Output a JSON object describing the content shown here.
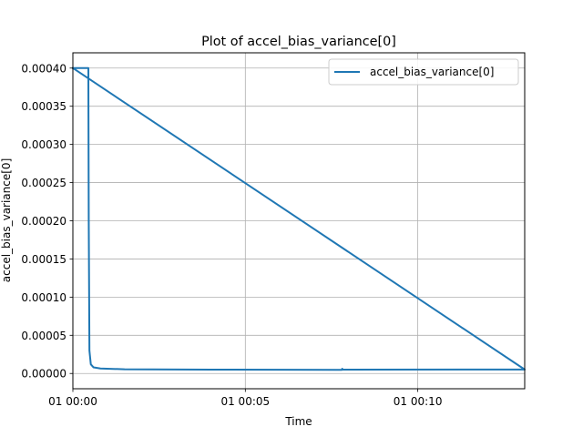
{
  "chart_data": {
    "type": "line",
    "title": "Plot of accel_bias_variance[0]",
    "xlabel": "Time",
    "ylabel": "accel_bias_variance[0]",
    "x_unit": "minutes",
    "xlim": [
      0,
      13.1
    ],
    "ylim": [
      -2e-05,
      0.00042
    ],
    "x_ticks": [
      {
        "value": 0,
        "label": "01 00:00"
      },
      {
        "value": 5,
        "label": "01 00:05"
      },
      {
        "value": 10,
        "label": "01 00:10"
      }
    ],
    "y_ticks": [
      {
        "value": 0.0,
        "label": "0.00000"
      },
      {
        "value": 5e-05,
        "label": "0.00005"
      },
      {
        "value": 0.0001,
        "label": "0.00010"
      },
      {
        "value": 0.00015,
        "label": "0.00015"
      },
      {
        "value": 0.0002,
        "label": "0.00020"
      },
      {
        "value": 0.00025,
        "label": "0.00025"
      },
      {
        "value": 0.0003,
        "label": "0.00030"
      },
      {
        "value": 0.00035,
        "label": "0.00035"
      },
      {
        "value": 0.0004,
        "label": "0.00040"
      }
    ],
    "grid": true,
    "legend_position": "top-right",
    "series": [
      {
        "name": "accel_bias_variance[0]",
        "color": "#1f77b4",
        "points": [
          [
            0.0,
            0.0004
          ],
          [
            0.45,
            0.0004
          ],
          [
            0.45,
            0.00038
          ],
          [
            0.46,
            0.0002
          ],
          [
            0.48,
            3e-05
          ],
          [
            0.52,
            1.2e-05
          ],
          [
            0.6,
            8e-06
          ],
          [
            0.8,
            6.5e-06
          ],
          [
            1.5,
            5.5e-06
          ],
          [
            4.0,
            5e-06
          ],
          [
            7.8,
            4.8e-06
          ],
          [
            7.81,
            6.2e-06
          ],
          [
            7.82,
            5e-06
          ],
          [
            13.1,
            5.2e-06
          ],
          [
            0.0,
            0.0004
          ]
        ]
      }
    ]
  }
}
